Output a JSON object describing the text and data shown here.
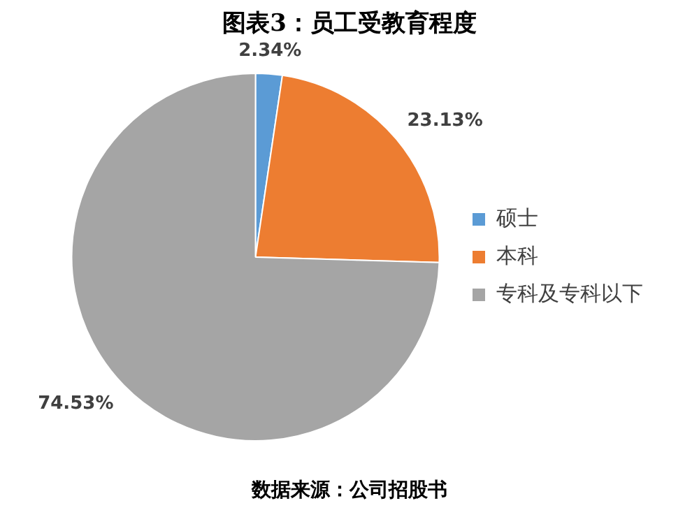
{
  "chart_data": {
    "type": "pie",
    "title": "图表3：员工受教育程度",
    "categories": [
      "硕士",
      "本科",
      "专科及专科以下"
    ],
    "values": [
      2.34,
      23.13,
      74.53
    ],
    "colors": [
      "#5b9bd5",
      "#ed7d31",
      "#a5a5a5"
    ],
    "value_labels": [
      "2.34%",
      "23.13%",
      "74.53%"
    ],
    "legend": "right",
    "annotations": [
      "数据来源：公司招股书"
    ]
  }
}
